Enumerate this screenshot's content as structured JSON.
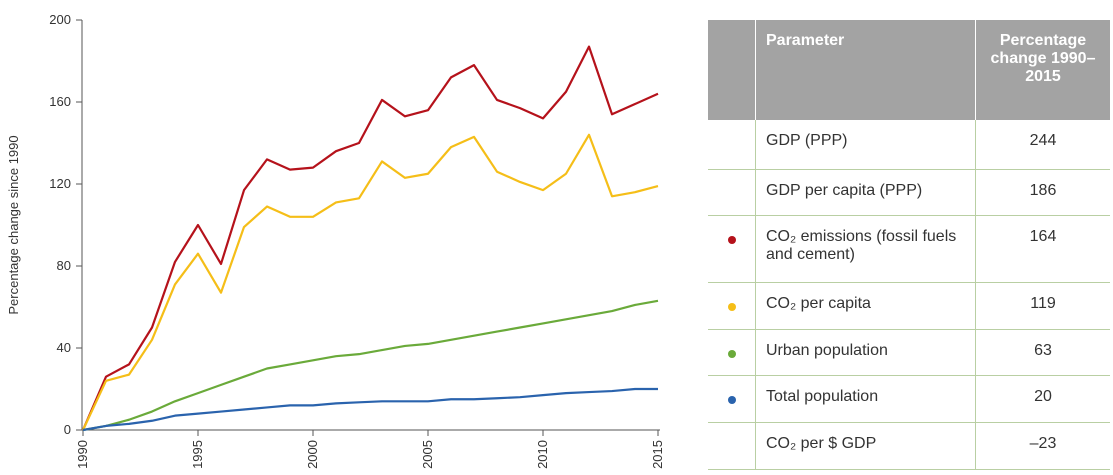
{
  "chart_data": {
    "type": "line",
    "y_label": "Percentage change since 1990",
    "x": [
      1990,
      1991,
      1992,
      1993,
      1994,
      1995,
      1996,
      1997,
      1998,
      1999,
      2000,
      2001,
      2002,
      2003,
      2004,
      2005,
      2006,
      2007,
      2008,
      2009,
      2010,
      2011,
      2012,
      2013,
      2014,
      2015
    ],
    "xlim": [
      1990,
      2015
    ],
    "xticks": [
      1990,
      1995,
      2000,
      2005,
      2010,
      2015
    ],
    "ylim": [
      0,
      200
    ],
    "yticks": [
      0,
      40,
      80,
      120,
      160,
      200
    ],
    "series": [
      {
        "color": "#b5121b",
        "values": [
          0,
          26,
          32,
          50,
          82,
          100,
          81,
          117,
          132,
          127,
          128,
          136,
          140,
          161,
          153,
          156,
          172,
          178,
          161,
          157,
          152,
          165,
          187,
          154,
          159,
          164
        ]
      },
      {
        "color": "#f5be18",
        "values": [
          0,
          24,
          27,
          44,
          71,
          86,
          67,
          99,
          109,
          104,
          104,
          111,
          113,
          131,
          123,
          125,
          138,
          143,
          126,
          121,
          117,
          125,
          144,
          114,
          116,
          119
        ]
      },
      {
        "color": "#6aaa3a",
        "values": [
          0,
          2,
          5,
          9,
          14,
          18,
          22,
          26,
          30,
          32,
          34,
          36,
          37,
          39,
          41,
          42,
          44,
          46,
          48,
          50,
          52,
          54,
          56,
          58,
          61,
          63
        ]
      },
      {
        "color": "#2a63ad",
        "values": [
          0,
          2,
          3,
          4.5,
          7,
          8,
          9,
          10,
          11,
          12,
          12,
          13,
          13.5,
          14,
          14,
          14,
          15,
          15,
          15.5,
          16,
          17,
          18,
          18.5,
          19,
          20,
          20
        ]
      }
    ]
  },
  "table": {
    "header": [
      "Parameter",
      "Percentage change 1990–2015"
    ],
    "rows": [
      {
        "cells": [
          "GDP (PPP)",
          244
        ]
      },
      {
        "cells": [
          "GDP per capita (PPP)",
          186
        ]
      },
      {
        "color": "#b5121b",
        "cells": [
          "CO₂ emissions (fossil fuels and cement)",
          164
        ]
      },
      {
        "color": "#f5be18",
        "cells": [
          "CO₂ per capita",
          119
        ]
      },
      {
        "color": "#6aaa3a",
        "cells": [
          "Urban population",
          63
        ]
      },
      {
        "color": "#2a63ad",
        "cells": [
          "Total population",
          20
        ]
      },
      {
        "cells": [
          "CO₂ per $ GDP",
          "–23"
        ]
      }
    ]
  }
}
